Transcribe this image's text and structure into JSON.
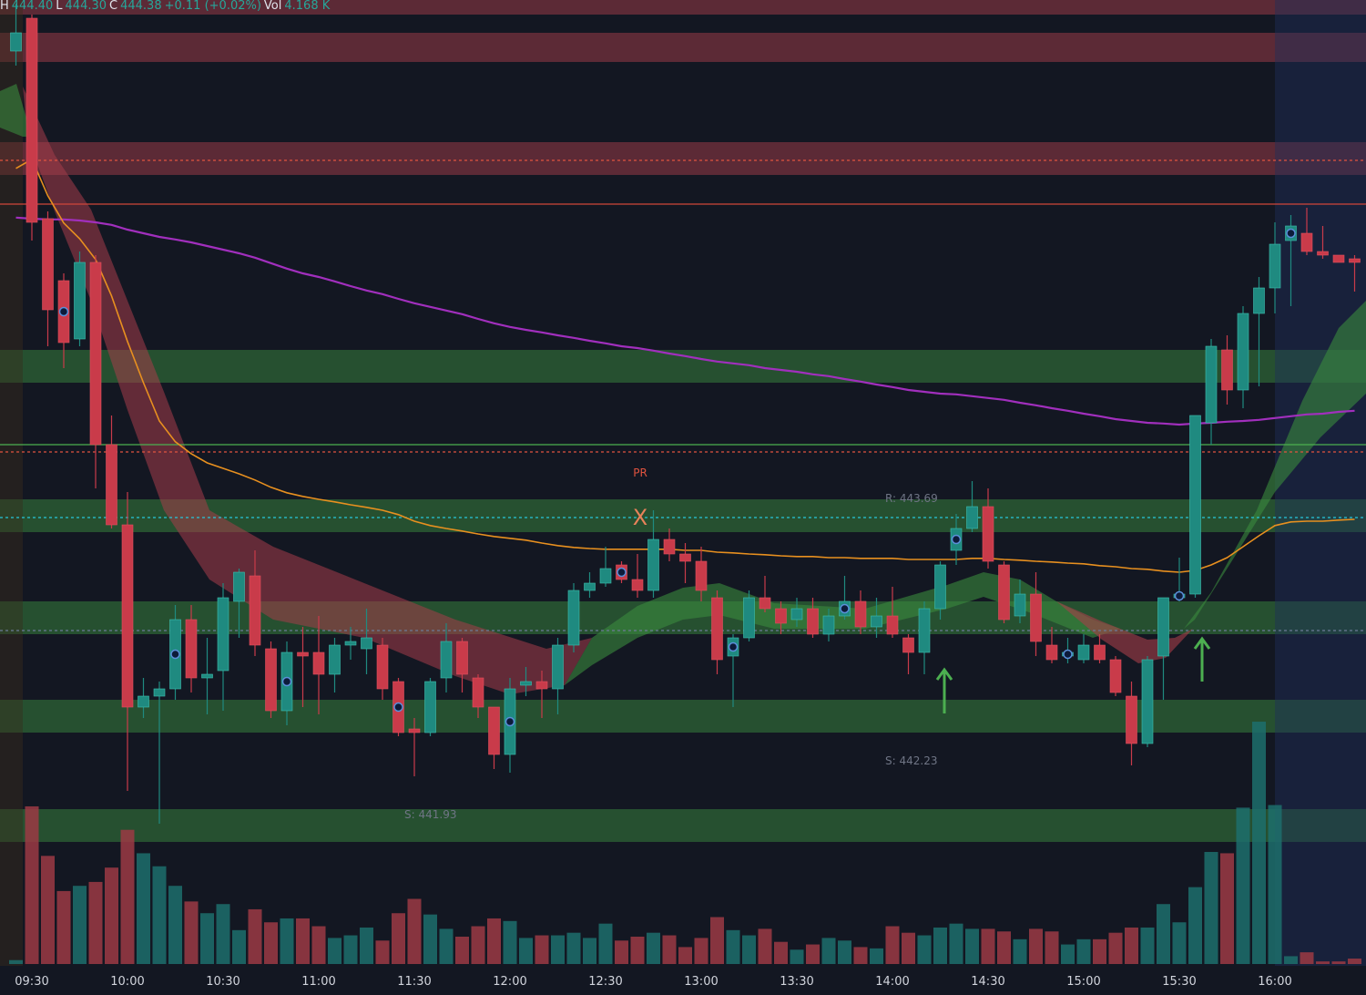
{
  "chart_data": {
    "type": "candlestick",
    "header": [
      {
        "text": "H",
        "color": "#e0e3eb"
      },
      {
        "text": "444.40",
        "color": "#26a69a"
      },
      {
        "text": "L",
        "color": "#e0e3eb"
      },
      {
        "text": "444.30",
        "color": "#26a69a"
      },
      {
        "text": "C",
        "color": "#e0e3eb"
      },
      {
        "text": "444.38",
        "color": "#26a69a"
      },
      {
        "text": "+0.11 (+0.02%)",
        "color": "#26a69a"
      },
      {
        "text": "Vol",
        "color": "#e0e3eb"
      },
      {
        "text": "4.168 K",
        "color": "#26a69a"
      }
    ],
    "categories": [
      null,
      "09:30",
      null,
      null,
      null,
      null,
      null,
      "10:00",
      null,
      null,
      null,
      null,
      null,
      "10:30",
      null,
      null,
      null,
      null,
      null,
      "11:00",
      null,
      null,
      null,
      null,
      null,
      "11:30",
      null,
      null,
      null,
      null,
      null,
      "12:00",
      null,
      null,
      null,
      null,
      null,
      "12:30",
      null,
      null,
      null,
      null,
      null,
      "13:00",
      null,
      null,
      null,
      null,
      null,
      "13:30",
      null,
      null,
      null,
      null,
      null,
      "14:00",
      null,
      null,
      null,
      null,
      null,
      "14:30",
      null,
      null,
      null,
      null,
      null,
      "15:00",
      null,
      null,
      null,
      null,
      null,
      "15:30",
      null,
      null,
      null,
      null,
      null,
      "16:00",
      null,
      null,
      null,
      null,
      null
    ],
    "open": [
      444.96,
      445.05,
      444.5,
      444.33,
      444.17,
      444.38,
      443.88,
      443.66,
      443.16,
      443.19,
      443.21,
      443.4,
      443.24,
      443.26,
      443.45,
      443.52,
      443.32,
      443.15,
      443.31,
      443.31,
      443.25,
      443.33,
      443.32,
      443.33,
      443.23,
      443.1,
      443.09,
      443.24,
      443.34,
      443.24,
      443.16,
      443.03,
      443.22,
      443.23,
      443.21,
      443.33,
      443.48,
      443.5,
      443.55,
      443.51,
      443.48,
      443.62,
      443.58,
      443.56,
      443.46,
      443.3,
      443.35,
      443.46,
      443.43,
      443.4,
      443.43,
      443.36,
      443.41,
      443.45,
      443.38,
      443.41,
      443.35,
      443.31,
      443.43,
      443.59,
      443.65,
      443.71,
      443.55,
      443.41,
      443.47,
      443.33,
      443.3,
      443.29,
      443.33,
      443.29,
      443.19,
      443.06,
      443.3,
      443.46,
      443.47,
      443.94,
      444.14,
      444.03,
      444.24,
      444.31,
      444.44,
      444.46,
      444.41,
      444.4,
      444.39
    ],
    "high": [
      445.09,
      445.06,
      444.52,
      444.35,
      444.41,
      444.4,
      443.96,
      443.75,
      443.24,
      443.23,
      443.44,
      443.44,
      443.35,
      443.5,
      443.54,
      443.59,
      443.34,
      443.34,
      443.38,
      443.41,
      443.35,
      443.38,
      443.43,
      443.35,
      443.24,
      443.13,
      443.24,
      443.39,
      443.35,
      443.25,
      443.16,
      443.24,
      443.27,
      443.26,
      443.35,
      443.5,
      443.53,
      443.6,
      443.56,
      443.58,
      443.7,
      443.65,
      443.61,
      443.6,
      443.48,
      443.36,
      443.48,
      443.52,
      443.45,
      443.46,
      443.46,
      443.43,
      443.52,
      443.48,
      443.46,
      443.49,
      443.36,
      443.45,
      443.56,
      443.69,
      443.78,
      443.76,
      443.56,
      443.51,
      443.53,
      443.38,
      443.35,
      443.36,
      443.36,
      443.3,
      443.23,
      443.3,
      443.46,
      443.57,
      443.96,
      444.17,
      444.18,
      444.26,
      444.34,
      444.49,
      444.51,
      444.53,
      444.48,
      444.4,
      444.4
    ],
    "low": [
      444.92,
      444.44,
      444.15,
      444.09,
      444.15,
      443.76,
      443.65,
      442.93,
      443.13,
      442.84,
      443.18,
      443.2,
      443.14,
      443.15,
      443.35,
      443.3,
      443.13,
      443.11,
      443.16,
      443.14,
      443.2,
      443.29,
      443.25,
      443.18,
      443.08,
      442.97,
      443.08,
      443.2,
      443.2,
      443.13,
      442.99,
      442.98,
      443.19,
      443.13,
      443.14,
      443.31,
      443.46,
      443.49,
      443.5,
      443.46,
      443.46,
      443.56,
      443.5,
      443.45,
      443.25,
      443.16,
      443.34,
      443.42,
      443.36,
      443.38,
      443.35,
      443.34,
      443.4,
      443.36,
      443.35,
      443.35,
      443.25,
      443.25,
      443.4,
      443.55,
      443.64,
      443.54,
      443.39,
      443.39,
      443.3,
      443.28,
      443.28,
      443.28,
      443.28,
      443.19,
      443.0,
      443.05,
      443.18,
      443.45,
      443.46,
      443.88,
      443.99,
      443.98,
      444.04,
      444.24,
      444.26,
      444.4,
      444.39,
      444.38,
      444.3
    ],
    "close": [
      445.01,
      444.49,
      444.25,
      444.16,
      444.38,
      443.88,
      443.66,
      443.16,
      443.19,
      443.21,
      443.4,
      443.24,
      443.25,
      443.46,
      443.53,
      443.33,
      443.15,
      443.31,
      443.3,
      443.25,
      443.33,
      443.34,
      443.35,
      443.21,
      443.09,
      443.09,
      443.23,
      443.34,
      443.25,
      443.16,
      443.03,
      443.21,
      443.23,
      443.21,
      443.33,
      443.48,
      443.5,
      443.54,
      443.51,
      443.48,
      443.62,
      443.58,
      443.56,
      443.48,
      443.29,
      443.35,
      443.46,
      443.43,
      443.39,
      443.43,
      443.36,
      443.41,
      443.45,
      443.38,
      443.41,
      443.36,
      443.31,
      443.43,
      443.55,
      443.65,
      443.71,
      443.56,
      443.4,
      443.47,
      443.34,
      443.29,
      443.31,
      443.33,
      443.29,
      443.2,
      443.06,
      443.29,
      443.46,
      443.47,
      443.96,
      444.15,
      444.03,
      444.24,
      444.31,
      444.43,
      444.48,
      444.41,
      444.4,
      444.38,
      444.38
    ],
    "volume": [
      3,
      121,
      83,
      56,
      60,
      63,
      74,
      103,
      85,
      75,
      60,
      48,
      39,
      46,
      26,
      42,
      32,
      35,
      35,
      29,
      20,
      22,
      28,
      18,
      39,
      50,
      38,
      27,
      21,
      29,
      35,
      33,
      20,
      22,
      22,
      24,
      20,
      31,
      18,
      21,
      24,
      22,
      13,
      20,
      36,
      26,
      22,
      27,
      17,
      11,
      15,
      20,
      18,
      13,
      12,
      29,
      24,
      22,
      28,
      31,
      27,
      27,
      25,
      19,
      27,
      25,
      15,
      19,
      19,
      24,
      28,
      28,
      46,
      32,
      59,
      86,
      85,
      120,
      186,
      122,
      6,
      9,
      2,
      2,
      4.168
    ],
    "up_color": "#1f8a80",
    "down_color": "#c93b4a",
    "volume_up_color": "#1d6f6c",
    "volume_down_color": "#9c3a44",
    "ylim": [
      442.45,
      445.1
    ],
    "vlim": [
      0,
      200
    ],
    "lines": [
      {
        "color": "#a12fbd",
        "values": [
          444.503,
          444.5,
          444.498,
          444.498,
          444.495,
          444.49,
          444.483,
          444.47,
          444.46,
          444.45,
          444.443,
          444.435,
          444.425,
          444.415,
          444.405,
          444.393,
          444.378,
          444.363,
          444.35,
          444.34,
          444.328,
          444.315,
          444.303,
          444.293,
          444.28,
          444.268,
          444.258,
          444.248,
          444.238,
          444.225,
          444.213,
          444.203,
          444.195,
          444.188,
          444.18,
          444.173,
          444.165,
          444.158,
          444.15,
          444.145,
          444.138,
          444.13,
          444.123,
          444.115,
          444.108,
          444.103,
          444.098,
          444.09,
          444.085,
          444.08,
          444.073,
          444.068,
          444.06,
          444.053,
          444.045,
          444.038,
          444.03,
          444.025,
          444.02,
          444.018,
          444.013,
          444.008,
          444.003,
          443.995,
          443.988,
          443.98,
          443.973,
          443.965,
          443.958,
          443.95,
          443.945,
          443.94,
          443.938,
          443.935,
          443.938,
          443.94,
          443.943,
          443.945,
          443.948,
          443.953,
          443.958,
          443.963,
          443.965,
          443.97,
          443.973
        ]
      },
      {
        "color": "#e8901f",
        "values": [
          444.638,
          444.663,
          444.563,
          444.488,
          444.445,
          444.388,
          444.288,
          444.163,
          444.05,
          443.945,
          443.888,
          443.855,
          443.83,
          443.815,
          443.8,
          443.783,
          443.763,
          443.748,
          443.738,
          443.73,
          443.723,
          443.715,
          443.708,
          443.7,
          443.688,
          443.67,
          443.658,
          443.65,
          443.643,
          443.635,
          443.628,
          443.623,
          443.618,
          443.61,
          443.603,
          443.598,
          443.595,
          443.593,
          443.593,
          443.593,
          443.593,
          443.593,
          443.59,
          443.59,
          443.585,
          443.583,
          443.58,
          443.578,
          443.575,
          443.573,
          443.573,
          443.57,
          443.57,
          443.568,
          443.568,
          443.568,
          443.565,
          443.565,
          443.565,
          443.565,
          443.568,
          443.568,
          443.565,
          443.563,
          443.56,
          443.558,
          443.555,
          443.553,
          443.548,
          443.545,
          443.54,
          443.538,
          443.533,
          443.53,
          443.535,
          443.55,
          443.57,
          443.6,
          443.63,
          443.658,
          443.668,
          443.67,
          443.67,
          443.673,
          443.675
        ]
      }
    ],
    "zones": [
      {
        "color": "#a63d4a",
        "range": [
          445.06,
          445.1
        ]
      },
      {
        "color": "#a63d4a",
        "range": [
          444.93,
          445.01
        ]
      },
      {
        "color": "#a63d4a",
        "range": [
          444.62,
          444.71
        ]
      },
      {
        "color": "#3a8a3e",
        "range": [
          444.05,
          444.14
        ]
      },
      {
        "color": "#3a8a3e",
        "range": [
          443.64,
          443.73
        ]
      },
      {
        "color": "#3a8a3e",
        "range": [
          443.36,
          443.45
        ]
      },
      {
        "color": "#3a8a3e",
        "range": [
          443.09,
          443.18
        ]
      },
      {
        "color": "#3a8a3e",
        "range": [
          442.79,
          442.88
        ]
      }
    ],
    "levels": [
      {
        "value": 444.66,
        "color": "#e0533f",
        "style": "dotted"
      },
      {
        "value": 444.54,
        "color": "#d0473a",
        "style": "solid"
      },
      {
        "value": 443.88,
        "color": "#4caf50",
        "style": "solid"
      },
      {
        "value": 443.86,
        "color": "#e0533f",
        "style": "dotted"
      },
      {
        "value": 443.68,
        "color": "#26c6da",
        "style": "dotted"
      },
      {
        "value": 443.37,
        "color": "#6b7a99",
        "style": "dotted"
      }
    ],
    "annotations": [
      {
        "text": "R: 443.69",
        "color": "#6f7585"
      },
      {
        "text": "S: 442.23",
        "color": "#6f7585"
      },
      {
        "text": "S: 441.93",
        "color": "#6f7585"
      },
      {
        "text": "PR",
        "color": "#e0533f"
      },
      {
        "text": "X",
        "color": "#e8825a"
      }
    ]
  }
}
